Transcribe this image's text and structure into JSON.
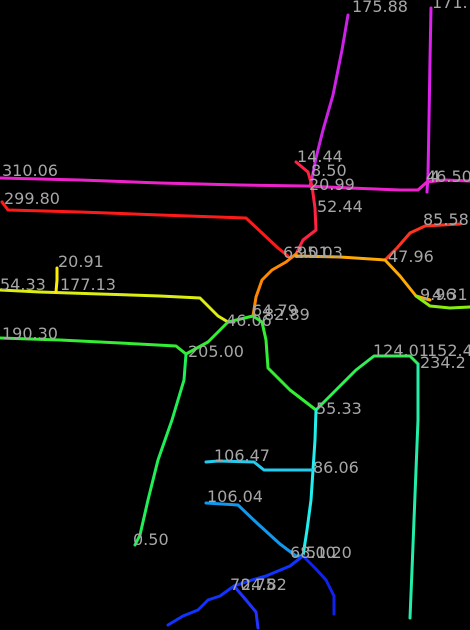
{
  "map": {
    "background": "#000000",
    "label_color": "#a6a6a6",
    "lines": [
      {
        "id": "magenta-a",
        "color": "#cc22e6"
      },
      {
        "id": "magenta-b",
        "color": "#dd22ee"
      },
      {
        "id": "pink-h",
        "color": "#ee22cc"
      },
      {
        "id": "red-h",
        "color": "#ff1a1a"
      },
      {
        "id": "red-v",
        "color": "#ff2244"
      },
      {
        "id": "orange-mid",
        "color": "#ff8800"
      },
      {
        "id": "orange-ne",
        "color": "#ff3322"
      },
      {
        "id": "orange-e",
        "color": "#ffaa00"
      },
      {
        "id": "yellow-w",
        "color": "#ddee11"
      },
      {
        "id": "yellow-spur",
        "color": "#ffee00"
      },
      {
        "id": "green-w",
        "color": "#33ee33"
      },
      {
        "id": "green-sw",
        "color": "#22ee55"
      },
      {
        "id": "lime-center",
        "color": "#88ee11"
      },
      {
        "id": "green-se",
        "color": "#33ee55"
      },
      {
        "id": "teal-e",
        "color": "#22eeaa"
      },
      {
        "id": "cyan-a",
        "color": "#22eeee"
      },
      {
        "id": "cyan-b",
        "color": "#22ccee"
      },
      {
        "id": "sky",
        "color": "#1199ee"
      },
      {
        "id": "blue-s",
        "color": "#1133ff"
      },
      {
        "id": "blue-se",
        "color": "#1122ee"
      },
      {
        "id": "blue-sw",
        "color": "#2233ff"
      }
    ],
    "labels": [
      {
        "id": "175-88",
        "text": "175.88"
      },
      {
        "id": "171",
        "text": "171."
      },
      {
        "id": "14-44",
        "text": "14.44"
      },
      {
        "id": "8-50",
        "text": "8.50"
      },
      {
        "id": "20-99",
        "text": "20.99"
      },
      {
        "id": "310-06",
        "text": "310.06"
      },
      {
        "id": "46-50",
        "text": "46.50"
      },
      {
        "id": "4",
        "text": "4"
      },
      {
        "id": "299-80",
        "text": "299.80"
      },
      {
        "id": "52-44",
        "text": "52.44"
      },
      {
        "id": "85-58",
        "text": "85.58"
      },
      {
        "id": "20-91",
        "text": "20.91"
      },
      {
        "id": "63-01",
        "text": "63.01"
      },
      {
        "id": "95-03",
        "text": "95.03"
      },
      {
        "id": "47-96",
        "text": "47.96"
      },
      {
        "id": "54-33",
        "text": "54.33"
      },
      {
        "id": "177-13",
        "text": "177.13"
      },
      {
        "id": "9-96",
        "text": "9.96"
      },
      {
        "id": "4-31",
        "text": "4.31"
      },
      {
        "id": "190-30",
        "text": "190.30"
      },
      {
        "id": "64-79",
        "text": "64.79"
      },
      {
        "id": "82-89",
        "text": "82.89"
      },
      {
        "id": "46-06",
        "text": "46.06"
      },
      {
        "id": "205-00",
        "text": "205.00"
      },
      {
        "id": "124-01",
        "text": "124.01"
      },
      {
        "id": "152-4",
        "text": "152.4"
      },
      {
        "id": "234-2",
        "text": "234.2"
      },
      {
        "id": "55-33",
        "text": "55.33"
      },
      {
        "id": "106-47",
        "text": "106.47"
      },
      {
        "id": "86-06",
        "text": "86.06"
      },
      {
        "id": "106-04",
        "text": "106.04"
      },
      {
        "id": "0-50",
        "text": "0.50"
      },
      {
        "id": "68-00",
        "text": "68.00"
      },
      {
        "id": "51-20",
        "text": "51.20"
      },
      {
        "id": "70-75",
        "text": "70.75"
      },
      {
        "id": "24-82",
        "text": "24.82"
      }
    ]
  }
}
